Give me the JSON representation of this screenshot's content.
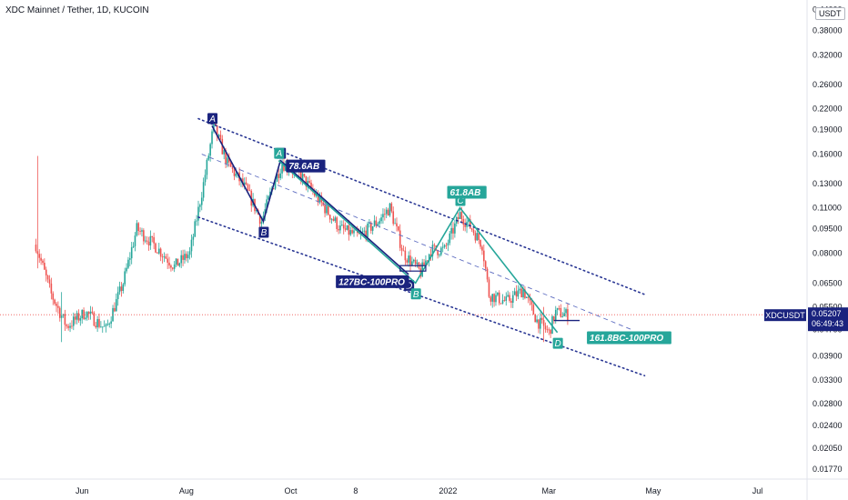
{
  "title": "XDC Mainnet / Tether, 1D, KUCOIN",
  "currency_button": "USDT",
  "colors": {
    "up": "#26a69a",
    "down": "#ef5350",
    "pattern_blue": "#1a237e",
    "pattern_green": "#26a69a",
    "channel": "#283593",
    "last_price": "#1a237e"
  },
  "chart_data": {
    "type": "candlestick",
    "scale": "log",
    "y_tick_labels": [
      "0.44000",
      "0.38000",
      "0.32000",
      "0.26000",
      "0.22000",
      "0.19000",
      "0.16000",
      "0.13000",
      "0.11000",
      "0.09500",
      "0.08000",
      "0.06500",
      "0.05500",
      "0.04700",
      "0.03900",
      "0.03300",
      "0.02800",
      "0.02400",
      "0.02050",
      "0.01770"
    ],
    "y_ticks": [
      0.44,
      0.38,
      0.32,
      0.26,
      0.22,
      0.19,
      0.16,
      0.13,
      0.11,
      0.095,
      0.08,
      0.065,
      0.055,
      0.047,
      0.039,
      0.033,
      0.028,
      0.024,
      0.0205,
      0.0177
    ],
    "ylim": [
      0.0165,
      0.47
    ],
    "x_tick_labels": [
      "Jun",
      "Aug",
      "Oct",
      "8",
      "2022",
      "Mar",
      "May",
      "Jul"
    ],
    "x_ticks": [
      "2021-06-01",
      "2021-08-01",
      "2021-10-01",
      "2021-11-08",
      "2022-01-01",
      "2022-03-01",
      "2022-05-01",
      "2022-07-01"
    ],
    "xlim": [
      "2021-04-14",
      "2022-07-30"
    ],
    "series_anchors": [
      [
        "2021-05-05",
        0.085
      ],
      [
        "2021-05-14",
        0.06
      ],
      [
        "2021-05-23",
        0.048
      ],
      [
        "2021-06-03",
        0.053
      ],
      [
        "2021-06-15",
        0.047
      ],
      [
        "2021-06-25",
        0.065
      ],
      [
        "2021-07-03",
        0.095
      ],
      [
        "2021-07-13",
        0.085
      ],
      [
        "2021-07-25",
        0.073
      ],
      [
        "2021-08-03",
        0.08
      ],
      [
        "2021-08-11",
        0.13
      ],
      [
        "2021-08-17",
        0.195
      ],
      [
        "2021-08-25",
        0.15
      ],
      [
        "2021-09-05",
        0.125
      ],
      [
        "2021-09-14",
        0.1
      ],
      [
        "2021-09-21",
        0.13
      ],
      [
        "2021-09-26",
        0.15
      ],
      [
        "2021-10-06",
        0.14
      ],
      [
        "2021-10-18",
        0.115
      ],
      [
        "2021-10-30",
        0.095
      ],
      [
        "2021-11-10",
        0.09
      ],
      [
        "2021-11-21",
        0.1
      ],
      [
        "2021-11-28",
        0.11
      ],
      [
        "2021-12-06",
        0.08
      ],
      [
        "2021-12-16",
        0.07
      ],
      [
        "2021-12-22",
        0.082
      ],
      [
        "2021-12-30",
        0.082
      ],
      [
        "2022-01-08",
        0.105
      ],
      [
        "2022-01-15",
        0.095
      ],
      [
        "2022-01-21",
        0.085
      ],
      [
        "2022-01-25",
        0.06
      ],
      [
        "2022-02-04",
        0.057
      ],
      [
        "2022-02-14",
        0.062
      ],
      [
        "2022-02-22",
        0.05
      ],
      [
        "2022-03-01",
        0.046
      ],
      [
        "2022-03-05",
        0.053
      ],
      [
        "2022-03-12",
        0.05207
      ]
    ],
    "extreme_wicks": [
      [
        "2021-05-06",
        0.158,
        0.072
      ],
      [
        "2021-05-20",
        0.061,
        0.043
      ],
      [
        "2022-02-26",
        0.055,
        0.043
      ]
    ],
    "last_price": {
      "label": "XDCUSDT",
      "value": "0.05207",
      "countdown": "06:49:43",
      "price": 0.05207
    },
    "horizontal_line": 0.05207,
    "channel": {
      "upper": [
        [
          "2021-08-08",
          0.205
        ],
        [
          "2022-04-26",
          0.06
        ]
      ],
      "lower": [
        [
          "2021-08-08",
          0.103
        ],
        [
          "2022-04-26",
          0.034
        ]
      ],
      "median_dashed": [
        [
          "2021-08-10",
          0.16
        ],
        [
          "2022-04-18",
          0.047
        ]
      ]
    },
    "pattern_blue": {
      "points": [
        [
          "A",
          "2021-08-16",
          0.195
        ],
        [
          "B",
          "2021-09-15",
          0.1
        ],
        [
          "C",
          "2021-09-25",
          0.153
        ],
        [
          "D",
          "2021-12-09",
          0.069
        ]
      ],
      "annotation": "127BC-100PRO",
      "ab_text": "78.6AB"
    },
    "pattern_green": {
      "points": [
        [
          "A",
          "2021-09-24",
          0.153
        ],
        [
          "B",
          "2021-12-13",
          0.065
        ],
        [
          "C",
          "2022-01-08",
          0.11
        ],
        [
          "D",
          "2022-03-06",
          0.046
        ]
      ],
      "annotation": "161.8BC-100PRO",
      "bc_text": "61.8AB"
    },
    "d_box_blue": {
      "x1": "2021-12-04",
      "x2": "2021-12-19",
      "y": 0.072
    },
    "d_box_green": {
      "x1": "2022-03-04",
      "x2": "2022-03-19",
      "y": 0.05
    }
  }
}
